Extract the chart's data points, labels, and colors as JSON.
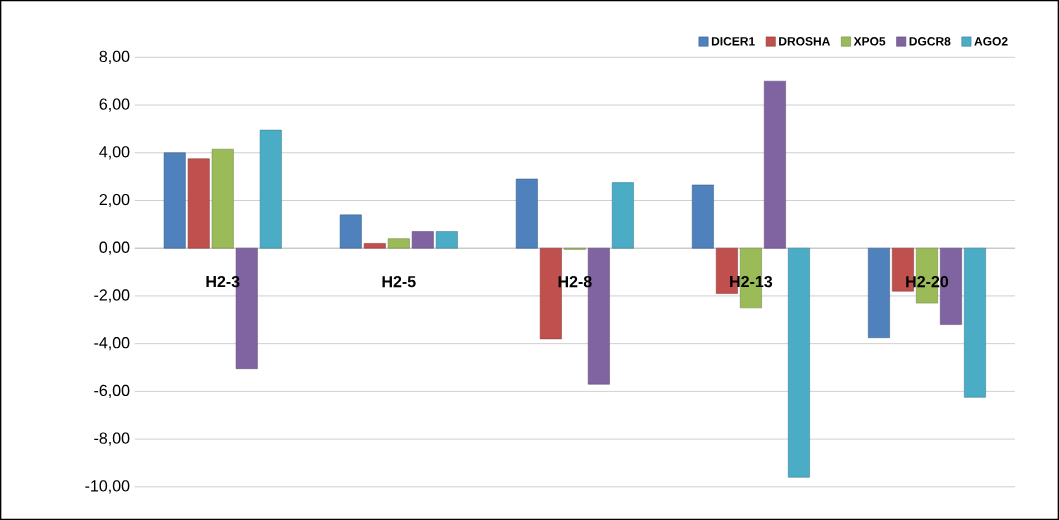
{
  "chart_data": {
    "type": "bar",
    "categories": [
      "H2-3",
      "H2-5",
      "H2-8",
      "H2-13",
      "H2-20"
    ],
    "series": [
      {
        "name": "DICER1",
        "color": "#4f81bd",
        "values": [
          4.0,
          1.4,
          2.9,
          2.65,
          -3.75
        ]
      },
      {
        "name": "DROSHA",
        "color": "#c0504d",
        "values": [
          3.75,
          0.2,
          -3.8,
          -1.9,
          -1.8
        ]
      },
      {
        "name": "XPO5",
        "color": "#9bbb59",
        "values": [
          4.15,
          0.4,
          -0.05,
          -2.5,
          -2.3
        ]
      },
      {
        "name": "DGCR8",
        "color": "#8064a2",
        "values": [
          -5.05,
          0.7,
          -5.7,
          7.0,
          -3.2
        ]
      },
      {
        "name": "AGO2",
        "color": "#4bacc6",
        "values": [
          4.95,
          0.7,
          2.75,
          -9.6,
          -6.25
        ]
      }
    ],
    "ylim": [
      -10,
      8
    ],
    "yticks": [
      {
        "value": -10,
        "label": "-10,00"
      },
      {
        "value": -8,
        "label": "-8,00"
      },
      {
        "value": -6,
        "label": "-6,00"
      },
      {
        "value": -4,
        "label": "-4,00"
      },
      {
        "value": -2,
        "label": "-2,00"
      },
      {
        "value": 0,
        "label": "0,00"
      },
      {
        "value": 2,
        "label": "2,00"
      },
      {
        "value": 4,
        "label": "4,00"
      },
      {
        "value": 6,
        "label": "6,00"
      },
      {
        "value": 8,
        "label": "8,00"
      }
    ],
    "grid": "y",
    "legend": "top right"
  }
}
